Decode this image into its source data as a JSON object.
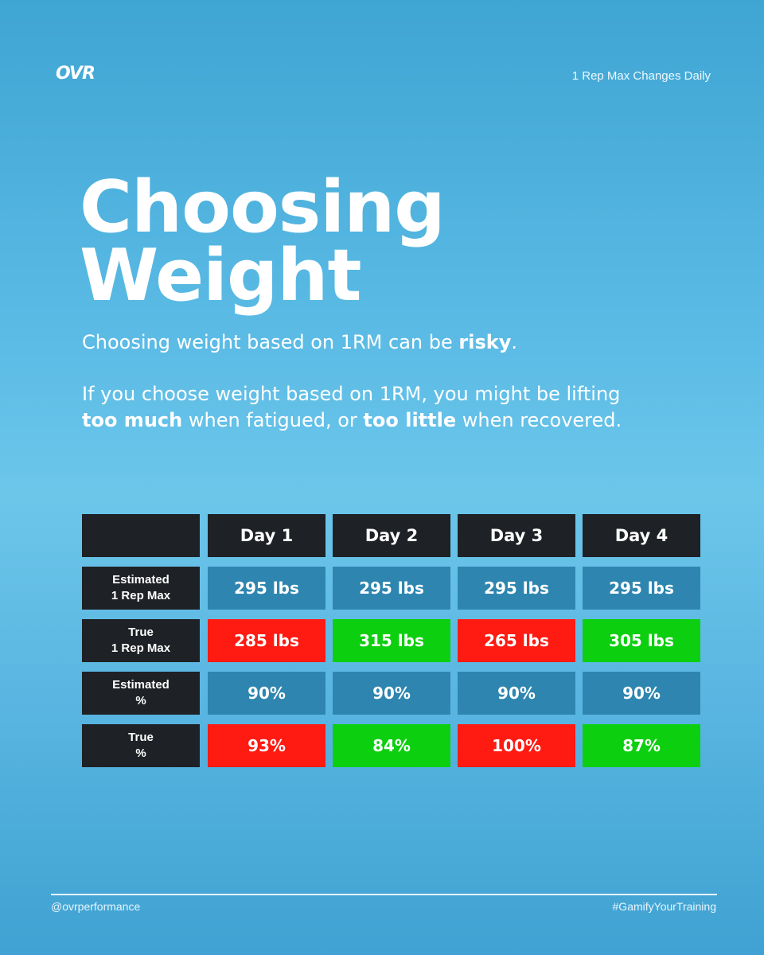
{
  "header": {
    "logo": "OVR",
    "tagline": "1 Rep Max Changes Daily"
  },
  "title": {
    "line1": "Choosing",
    "line2": "Weight"
  },
  "paragraph1": {
    "before": "Choosing weight based on 1RM can be ",
    "bold": "risky",
    "after": "."
  },
  "paragraph2": {
    "part1": "If you choose weight based on 1RM, you might be lifting ",
    "bold1": "too much",
    "part2": " when fatigued, or ",
    "bold2": "too little",
    "part3": " when recovered."
  },
  "table": {
    "columns": [
      "Day 1",
      "Day 2",
      "Day 3",
      "Day 4"
    ],
    "rows": [
      {
        "label_line1": "Estimated",
        "label_line2": "1 Rep Max",
        "values": [
          "295 lbs",
          "295 lbs",
          "295 lbs",
          "295 lbs"
        ],
        "status": [
          "neutral",
          "neutral",
          "neutral",
          "neutral"
        ]
      },
      {
        "label_line1": "True",
        "label_line2": "1 Rep Max",
        "values": [
          "285 lbs",
          "315 lbs",
          "265 lbs",
          "305 lbs"
        ],
        "status": [
          "bad",
          "good",
          "bad",
          "good"
        ]
      },
      {
        "label_line1": "Estimated",
        "label_line2": "%",
        "values": [
          "90%",
          "90%",
          "90%",
          "90%"
        ],
        "status": [
          "neutral",
          "neutral",
          "neutral",
          "neutral"
        ]
      },
      {
        "label_line1": "True",
        "label_line2": "%",
        "values": [
          "93%",
          "84%",
          "100%",
          "87%"
        ],
        "status": [
          "bad",
          "good",
          "bad",
          "good"
        ]
      }
    ]
  },
  "colors": {
    "background_top": "#3fa5d3",
    "background_mid": "#6cc6ea",
    "dark_cell": "#1e2125",
    "neutral_cell": "#2e86b0",
    "bad_cell": "#ff1a12",
    "good_cell": "#0ccf0f"
  },
  "footer": {
    "handle": "@ovrperformance",
    "hashtag": "#GamifyYourTraining"
  }
}
